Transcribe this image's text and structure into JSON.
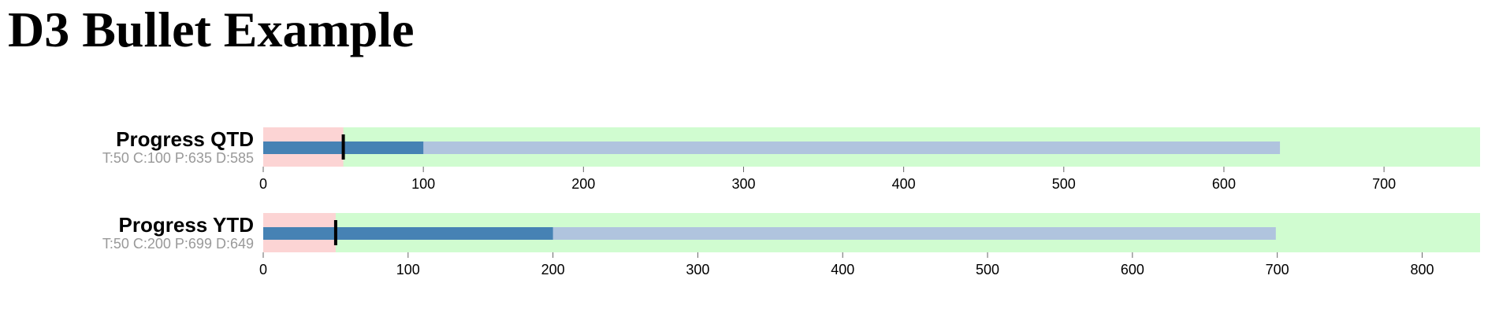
{
  "page": {
    "title": "D3 Bullet Example"
  },
  "colors": {
    "range_bad": "#fcd4d4",
    "range_good": "#d0fcd0",
    "measure_projected": "#b0c4de",
    "measure_current": "#4682b4",
    "marker": "#000000",
    "subtitle": "#999999"
  },
  "chart_data": [
    {
      "type": "bullet",
      "title": "Progress QTD",
      "subtitle": "T:50 C:100 P:635 D:585",
      "ranges": [
        50,
        760
      ],
      "measures": {
        "current": 100,
        "projected": 635
      },
      "marker": 50,
      "xlim": [
        0,
        760
      ],
      "ticks": [
        0,
        100,
        200,
        300,
        400,
        500,
        600,
        700
      ]
    },
    {
      "type": "bullet",
      "title": "Progress YTD",
      "subtitle": "T:50 C:200 P:699 D:649",
      "ranges": [
        50,
        840
      ],
      "measures": {
        "current": 200,
        "projected": 699
      },
      "marker": 50,
      "xlim": [
        0,
        840
      ],
      "ticks": [
        0,
        100,
        200,
        300,
        400,
        500,
        600,
        700,
        800
      ]
    }
  ]
}
